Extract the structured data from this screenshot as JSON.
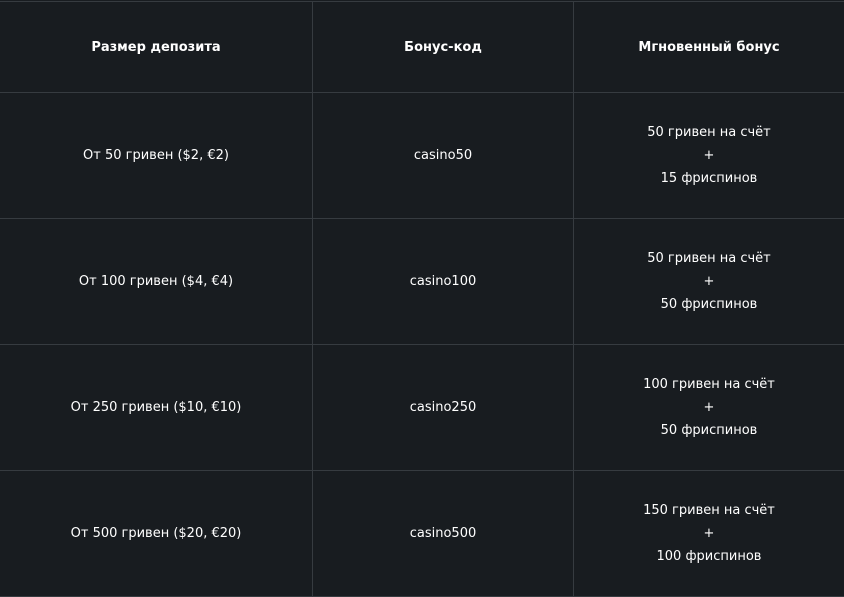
{
  "headers": [
    "Размер депозита",
    "Бонус-код",
    "Мгновенный бонус"
  ],
  "rows": [
    {
      "deposit": "От 50 гривен ($2, €2)",
      "code": "casino50",
      "bonus": [
        "50 гривен на счёт",
        "+",
        "15 фриспинов"
      ]
    },
    {
      "deposit": "От 100 гривен ($4, €4)",
      "code": "casino100",
      "bonus": [
        "50 гривен на счёт",
        "+",
        "50 фриспинов"
      ]
    },
    {
      "deposit": "От 250 гривен ($10, €10)",
      "code": "casino250",
      "bonus": [
        "100 гривен на счёт",
        "+",
        "50 фриспинов"
      ]
    },
    {
      "deposit": "От 500 гривен ($20, €20)",
      "code": "casino500",
      "bonus": [
        "150 гривен на счёт",
        "+",
        "100 фриспинов"
      ]
    }
  ]
}
